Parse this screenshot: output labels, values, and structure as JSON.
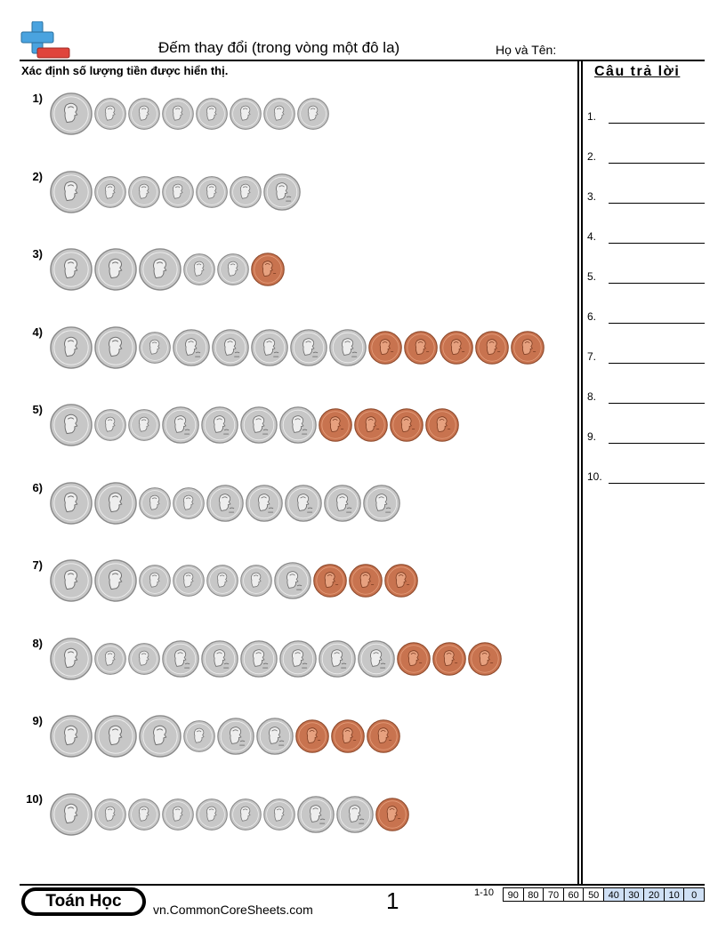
{
  "header": {
    "title": "Đếm thay đổi (trong vòng một đô la)",
    "name_label": "Họ và Tên:"
  },
  "instructions": "Xác định số lượng tiền được hiển thị.",
  "colors": {
    "logo_blue": "#4aa3df",
    "logo_red": "#e0443c",
    "silver": "#c7c7c7",
    "copper": "#c8734f",
    "score_blue": "#cfe0f5"
  },
  "problems": [
    {
      "label": "1)",
      "coins": [
        "quarter",
        "dime",
        "dime",
        "dime",
        "dime",
        "dime",
        "dime",
        "dime"
      ]
    },
    {
      "label": "2)",
      "coins": [
        "quarter",
        "dime",
        "dime",
        "dime",
        "dime",
        "dime",
        "nickel"
      ]
    },
    {
      "label": "3)",
      "coins": [
        "quarter",
        "quarter",
        "quarter",
        "dime",
        "dime",
        "penny"
      ]
    },
    {
      "label": "4)",
      "coins": [
        "quarter",
        "quarter",
        "dime",
        "nickel",
        "nickel",
        "nickel",
        "nickel",
        "nickel",
        "penny",
        "penny",
        "penny",
        "penny",
        "penny"
      ]
    },
    {
      "label": "5)",
      "coins": [
        "quarter",
        "dime",
        "dime",
        "nickel",
        "nickel",
        "nickel",
        "nickel",
        "penny",
        "penny",
        "penny",
        "penny"
      ]
    },
    {
      "label": "6)",
      "coins": [
        "quarter",
        "quarter",
        "dime",
        "dime",
        "nickel",
        "nickel",
        "nickel",
        "nickel",
        "nickel"
      ]
    },
    {
      "label": "7)",
      "coins": [
        "quarter",
        "quarter",
        "dime",
        "dime",
        "dime",
        "dime",
        "nickel",
        "penny",
        "penny",
        "penny"
      ]
    },
    {
      "label": "8)",
      "coins": [
        "quarter",
        "dime",
        "dime",
        "nickel",
        "nickel",
        "nickel",
        "nickel",
        "nickel",
        "nickel",
        "penny",
        "penny",
        "penny"
      ]
    },
    {
      "label": "9)",
      "coins": [
        "quarter",
        "quarter",
        "quarter",
        "dime",
        "nickel",
        "nickel",
        "penny",
        "penny",
        "penny"
      ]
    },
    {
      "label": "10)",
      "coins": [
        "quarter",
        "dime",
        "dime",
        "dime",
        "dime",
        "dime",
        "dime",
        "nickel",
        "nickel",
        "penny"
      ]
    }
  ],
  "answers": {
    "title": "Câu trả lời",
    "items": [
      "1.",
      "2.",
      "3.",
      "4.",
      "5.",
      "6.",
      "7.",
      "8.",
      "9.",
      "10."
    ]
  },
  "footer": {
    "brand": "Toán Học",
    "site": "vn.CommonCoreSheets.com",
    "page": "1",
    "score_label": "1-10",
    "scores": [
      "90",
      "80",
      "70",
      "60",
      "50",
      "40",
      "30",
      "20",
      "10",
      "0"
    ]
  }
}
